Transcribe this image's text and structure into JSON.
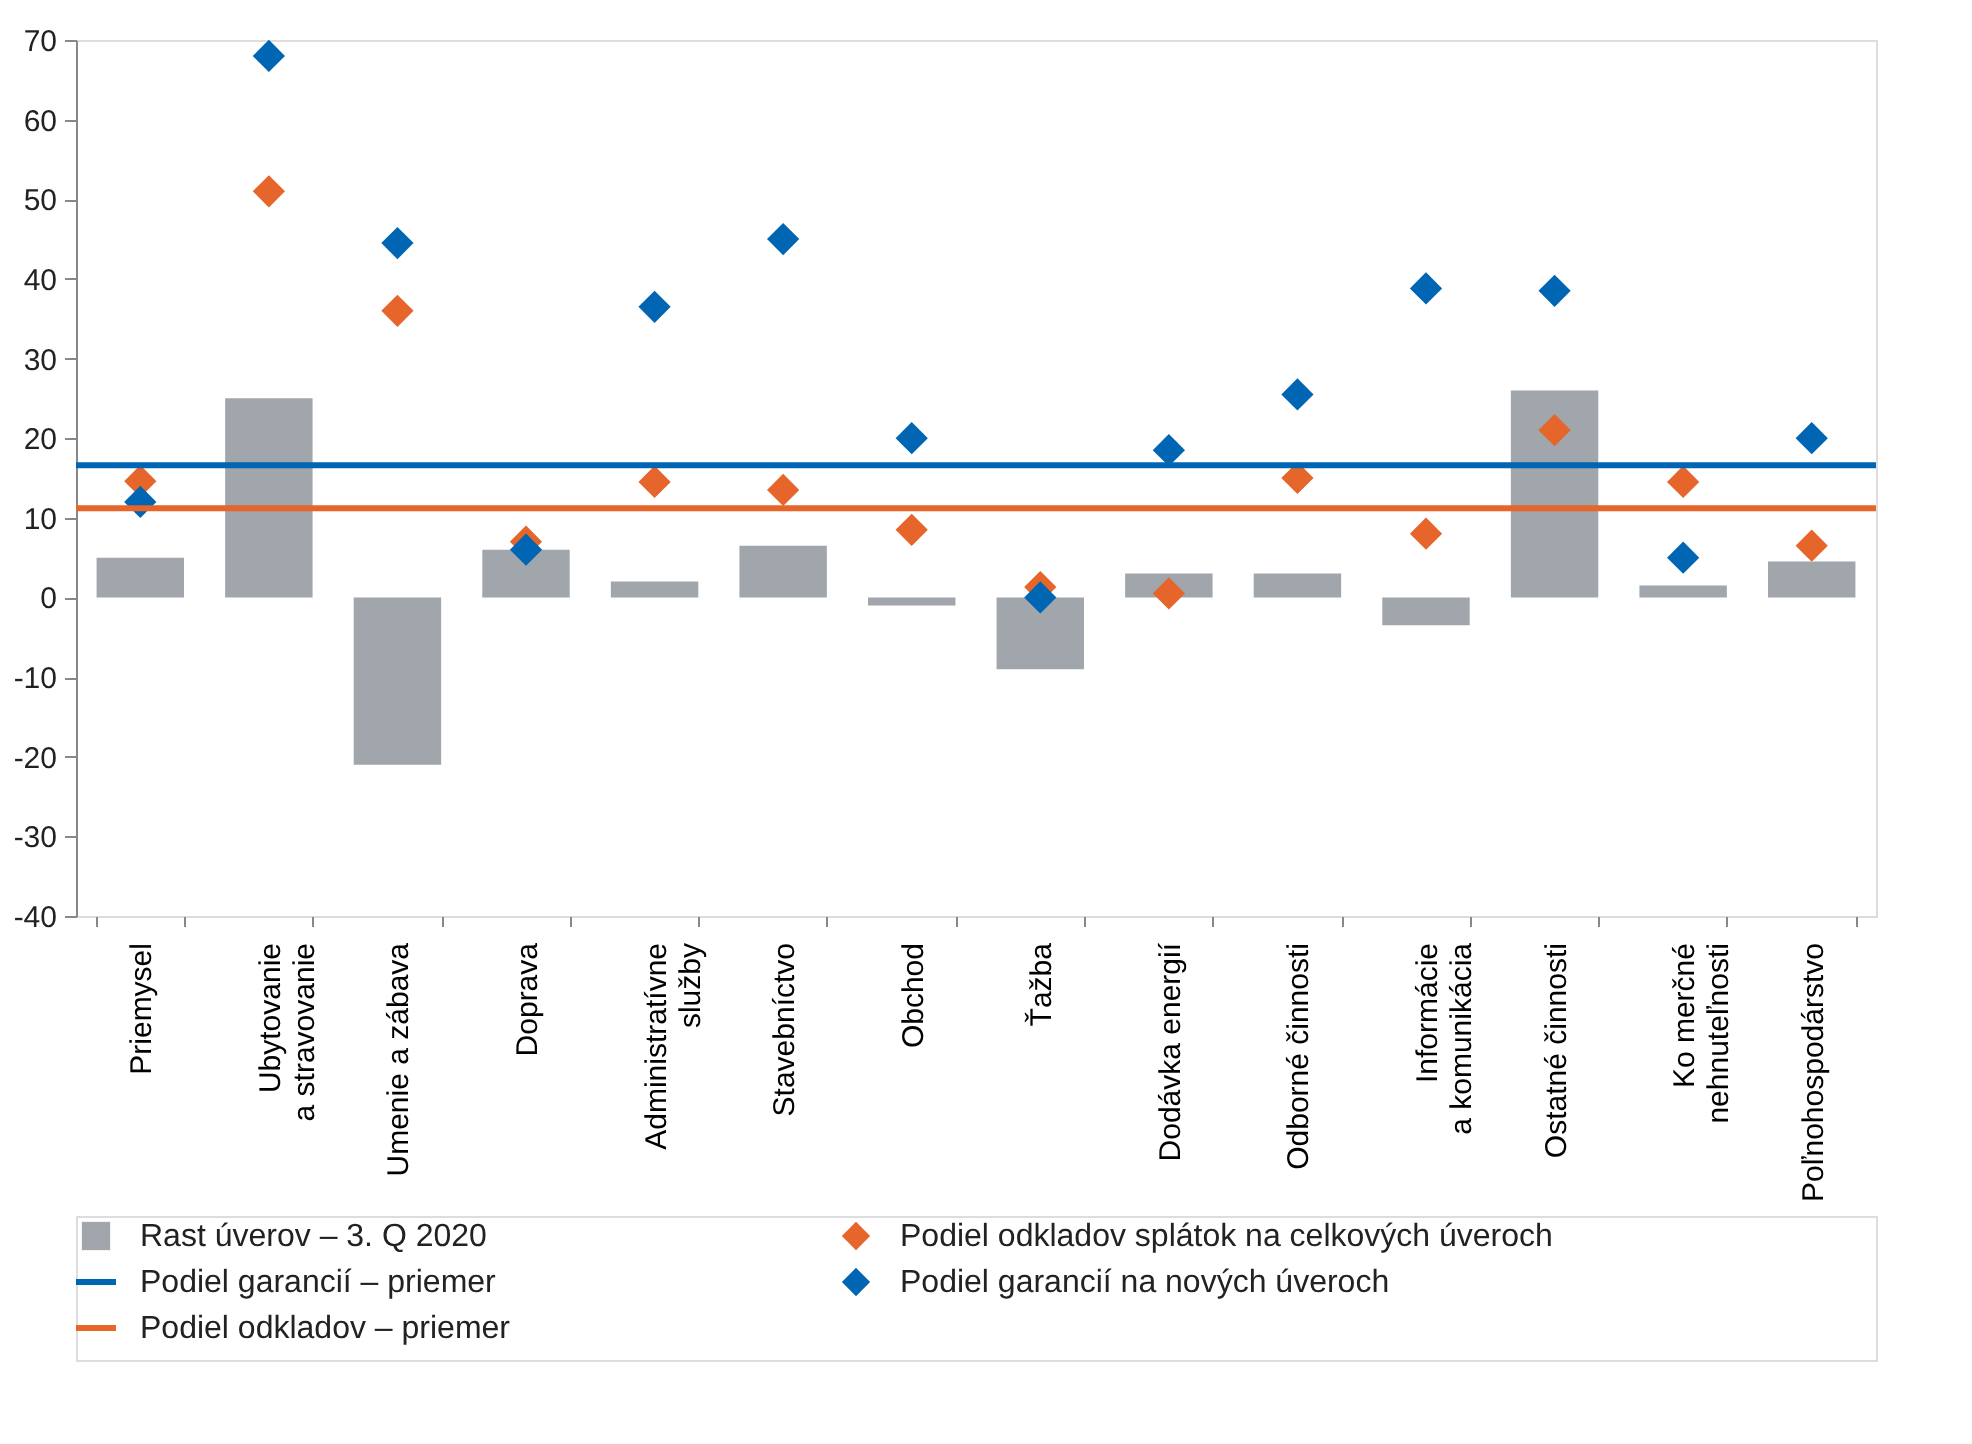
{
  "chart_data": {
    "type": "bar",
    "categories": [
      "Priemysel",
      "Ubytovanie\na stravovanie",
      "Umenie a zábava",
      "Doprava",
      "Administratívne\nslužby",
      "Stavebníctvo",
      "Obchod",
      "Ťažba",
      "Dodávka energií",
      "Odborné činnosti",
      "Informácie\na komunikácia",
      "Ostatné činnosti",
      "Ko merčné\nnehnuteľnosti",
      "Poľnohospodárstvo"
    ],
    "series": [
      {
        "name": "Rast úverov – 3. Q 2020",
        "type": "bar",
        "color": "#a0a6ab",
        "values": [
          5,
          25,
          -21,
          6,
          2,
          6.5,
          -1,
          -9,
          3,
          3,
          -3.5,
          26,
          1.5,
          4.5
        ]
      },
      {
        "name": "Podiel odkladov splátok na celkových úveroch",
        "type": "scatter",
        "color": "#e5652a",
        "values": [
          14.6,
          51,
          36,
          7,
          14.5,
          13.5,
          8.5,
          1.3,
          0.5,
          15,
          8,
          21,
          14.5,
          6.5
        ]
      },
      {
        "name": "Podiel garancií na nových úveroch",
        "type": "scatter",
        "color": "#0065b3",
        "values": [
          12,
          68,
          44.5,
          6,
          36.5,
          45,
          20,
          0,
          18.5,
          25.5,
          38.8,
          38.5,
          5,
          20
        ]
      }
    ],
    "ref_lines": [
      {
        "axis": "y",
        "value": 16.6,
        "label": "Podiel garancií – priemer",
        "color": "#0065b3"
      },
      {
        "axis": "y",
        "value": 11.2,
        "label": "Podiel odkladov – priemer",
        "color": "#e5652a"
      }
    ],
    "ylim": [
      -40,
      70
    ],
    "yticks": [
      -40,
      -30,
      -20,
      -10,
      0,
      10,
      20,
      30,
      40,
      50,
      60,
      70
    ],
    "grid": false,
    "legend": "bottom",
    "marker": "diamond"
  }
}
